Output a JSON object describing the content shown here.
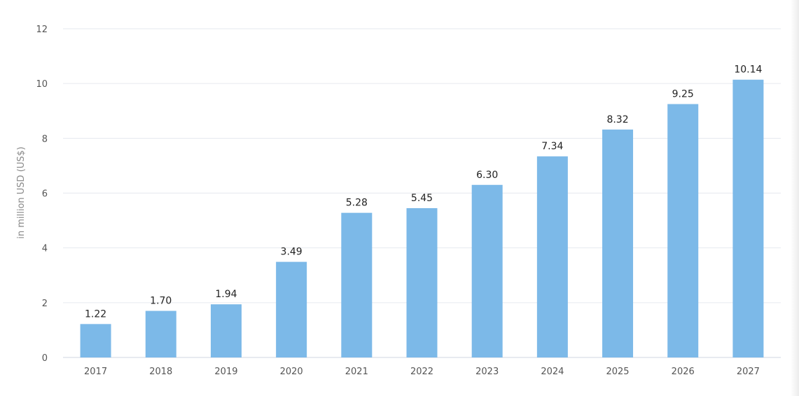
{
  "chart_data": {
    "type": "bar",
    "title": "",
    "xlabel": "",
    "ylabel": "in million USD (US$)",
    "categories": [
      "2017",
      "2018",
      "2019",
      "2020",
      "2021",
      "2022",
      "2023",
      "2024",
      "2025",
      "2026",
      "2027"
    ],
    "values": [
      1.22,
      1.7,
      1.94,
      3.49,
      5.28,
      5.45,
      6.3,
      7.34,
      8.32,
      9.25,
      10.14
    ],
    "value_labels": [
      "1.22",
      "1.70",
      "1.94",
      "3.49",
      "5.28",
      "5.45",
      "6.30",
      "7.34",
      "8.32",
      "9.25",
      "10.14"
    ],
    "ylim": [
      0,
      12
    ],
    "yticks": [
      0,
      2,
      4,
      6,
      8,
      10,
      12
    ],
    "grid": true,
    "legend": "none",
    "colors": {
      "bar": "#7cb9e8",
      "grid": "#e6e9ef",
      "axis": "#cfd6e0"
    }
  }
}
